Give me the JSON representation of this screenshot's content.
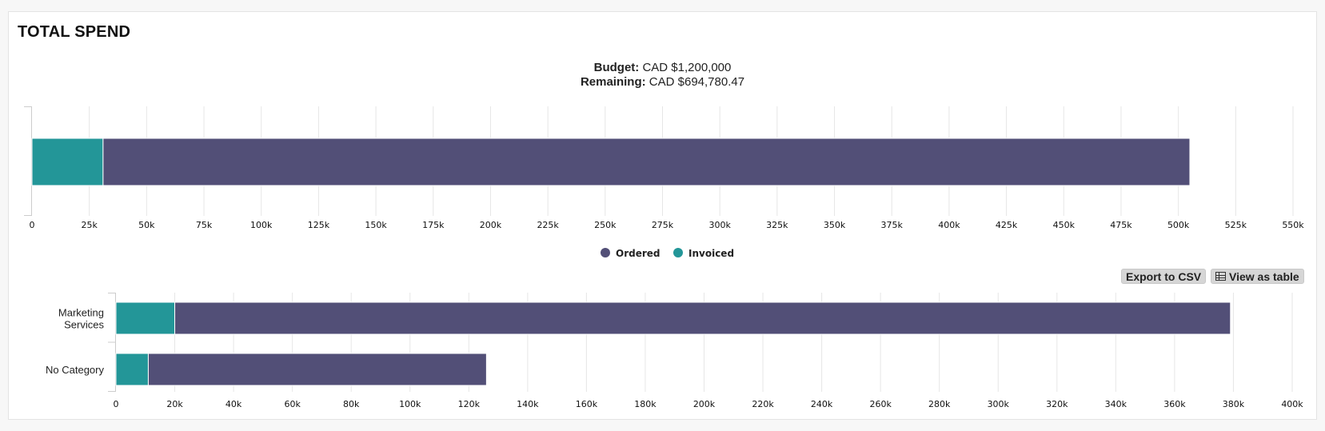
{
  "panel": {
    "title": "TOTAL SPEND",
    "budget_label": "Budget:",
    "budget_value": "CAD $1,200,000",
    "remaining_label": "Remaining:",
    "remaining_value": "CAD $694,780.47"
  },
  "buttons": {
    "export_label": "Export to CSV",
    "view_table_label": "View as table"
  },
  "colors": {
    "ordered": "#524f77",
    "invoiced": "#239698",
    "grid": "#e6e6e6"
  },
  "chart_data": [
    {
      "type": "bar",
      "orientation": "horizontal",
      "stacked": true,
      "categories": [
        ""
      ],
      "series": [
        {
          "name": "Invoiced",
          "values": [
            31000
          ]
        },
        {
          "name": "Ordered",
          "values": [
            474000
          ]
        }
      ],
      "x_ticks": [
        "0",
        "25k",
        "50k",
        "75k",
        "100k",
        "125k",
        "150k",
        "175k",
        "200k",
        "225k",
        "250k",
        "275k",
        "300k",
        "325k",
        "350k",
        "375k",
        "400k",
        "425k",
        "450k",
        "475k",
        "500k",
        "525k",
        "550k"
      ],
      "xlim": [
        0,
        550000
      ],
      "grid": true,
      "legend": {
        "position": "bottom-center",
        "items": [
          "Ordered",
          "Invoiced"
        ]
      }
    },
    {
      "type": "bar",
      "orientation": "horizontal",
      "stacked": true,
      "categories": [
        "Marketing Services",
        "No Category"
      ],
      "series": [
        {
          "name": "Invoiced",
          "values": [
            20000,
            11000
          ]
        },
        {
          "name": "Ordered",
          "values": [
            359000,
            115000
          ]
        }
      ],
      "x_ticks": [
        "0",
        "20k",
        "40k",
        "60k",
        "80k",
        "100k",
        "120k",
        "140k",
        "160k",
        "180k",
        "200k",
        "220k",
        "240k",
        "260k",
        "280k",
        "300k",
        "320k",
        "340k",
        "360k",
        "380k",
        "400k"
      ],
      "xlim": [
        0,
        400000
      ],
      "grid": true
    }
  ]
}
